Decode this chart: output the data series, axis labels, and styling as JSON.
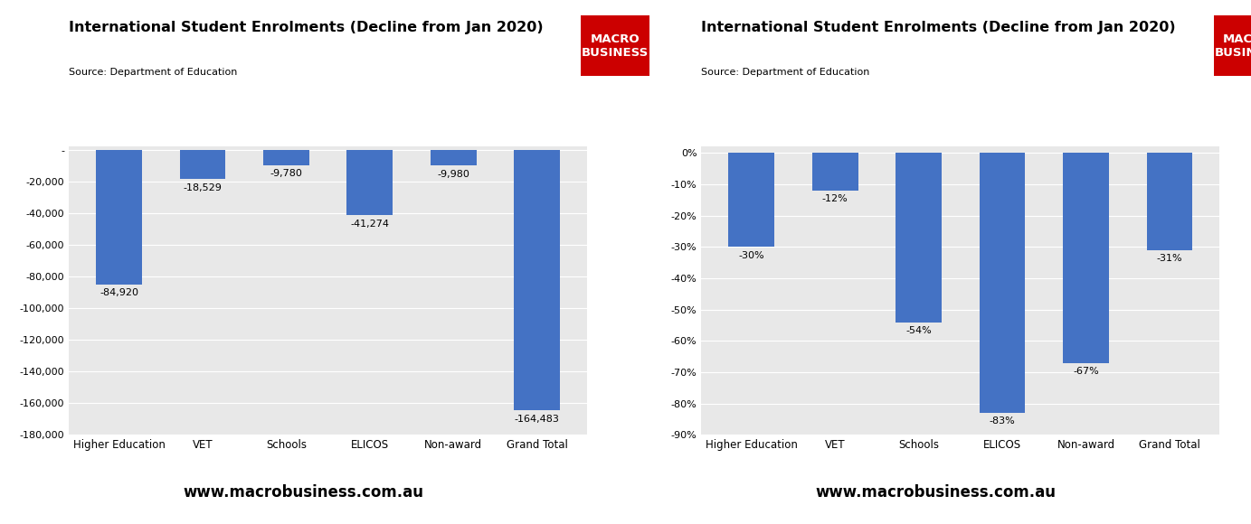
{
  "categories": [
    "Higher Education",
    "VET",
    "Schools",
    "ELICOS",
    "Non-award",
    "Grand Total"
  ],
  "values_abs": [
    -84920,
    -18529,
    -9780,
    -41274,
    -9980,
    -164483
  ],
  "values_pct": [
    -0.3,
    -0.12,
    -0.54,
    -0.83,
    -0.67,
    -0.31
  ],
  "labels_abs": [
    "-84,920",
    "-18,529",
    "-9,780",
    "-41,274",
    "-9,980",
    "-164,483"
  ],
  "labels_pct": [
    "-30%",
    "-12%",
    "-54%",
    "-83%",
    "-67%",
    "-31%"
  ],
  "bar_color": "#4472C4",
  "title": "International Student Enrolments (Decline from Jan 2020)",
  "source": "Source: Department of Education",
  "website": "www.macrobusiness.com.au",
  "macro_bg": "#CC0000",
  "macro_text": "MACRO\nBUSINESS",
  "ylim_abs": [
    -180000,
    2000
  ],
  "ylim_pct": [
    -0.9,
    0.02
  ],
  "yticks_abs": [
    0,
    -20000,
    -40000,
    -60000,
    -80000,
    -100000,
    -120000,
    -140000,
    -160000,
    -180000
  ],
  "yticks_pct": [
    0.0,
    -0.1,
    -0.2,
    -0.3,
    -0.4,
    -0.5,
    -0.6,
    -0.7,
    -0.8,
    -0.9
  ],
  "bg_color": "#E8E8E8",
  "fig_bg": "#FFFFFF"
}
